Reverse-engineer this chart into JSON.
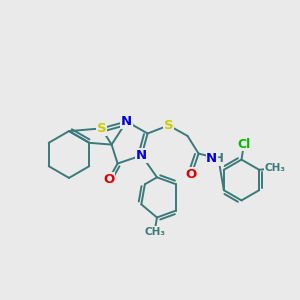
{
  "bg_color": "#eaeaea",
  "bond_color": "#3a7a7a",
  "bond_width": 1.4,
  "atom_colors": {
    "S": "#cccc00",
    "N": "#0000dd",
    "O": "#dd0000",
    "Cl": "#00bb00",
    "C": "#3a7a7a",
    "H": "#3a7a7a"
  },
  "font_size": 8.5,
  "fig_width": 3.0,
  "fig_height": 3.0,
  "dpi": 100
}
